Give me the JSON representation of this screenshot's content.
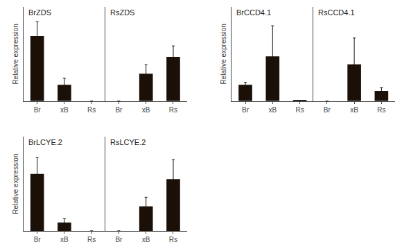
{
  "chart_data": [
    {
      "type": "bar",
      "title": "BrZDS",
      "categories": [
        "Br",
        "xB",
        "Rs"
      ],
      "values": [
        1.0,
        0.25,
        0.0
      ],
      "errors": [
        0.22,
        0.1,
        0.0
      ],
      "ylim": [
        0,
        1.45
      ],
      "ylabel": "Relative expression",
      "color": "#1a1008",
      "tick_labels": "x",
      "grid": false
    },
    {
      "type": "bar",
      "title": "RsZDS",
      "categories": [
        "Br",
        "xB",
        "Rs"
      ],
      "values": [
        0.0,
        0.42,
        0.68
      ],
      "errors": [
        0.0,
        0.14,
        0.17
      ],
      "ylim": [
        0,
        1.45
      ],
      "color": "#1a1008",
      "tick_labels": "x",
      "grid": false
    },
    {
      "type": "bar",
      "title": "BrCCD4.1",
      "categories": [
        "Br",
        "xB",
        "Rs"
      ],
      "values": [
        0.32,
        0.88,
        0.01
      ],
      "errors": [
        0.05,
        0.6,
        0.0
      ],
      "ylim": [
        0,
        1.85
      ],
      "ylabel": "Relative expression",
      "color": "#1a1008",
      "tick_labels": "x",
      "grid": false
    },
    {
      "type": "bar",
      "title": "RsCCD4.1",
      "categories": [
        "Br",
        "xB",
        "Rs"
      ],
      "values": [
        0.0,
        0.72,
        0.2
      ],
      "errors": [
        0.0,
        0.52,
        0.06
      ],
      "ylim": [
        0,
        1.85
      ],
      "color": "#1a1008",
      "tick_labels": "x",
      "grid": false
    },
    {
      "type": "bar",
      "title": "BrLCYE.2",
      "categories": [
        "Br",
        "xB",
        "Rs"
      ],
      "values": [
        0.88,
        0.13,
        0.0
      ],
      "errors": [
        0.25,
        0.06,
        0.0
      ],
      "ylim": [
        0,
        1.45
      ],
      "ylabel": "Relative expression",
      "color": "#1a1008",
      "tick_labels": "x",
      "grid": false
    },
    {
      "type": "bar",
      "title": "RsLCYE.2",
      "categories": [
        "Br",
        "xB",
        "Rs"
      ],
      "values": [
        0.0,
        0.38,
        0.8
      ],
      "errors": [
        0.0,
        0.14,
        0.3
      ],
      "ylim": [
        0,
        1.45
      ],
      "color": "#1a1008",
      "tick_labels": "x",
      "grid": false
    }
  ]
}
